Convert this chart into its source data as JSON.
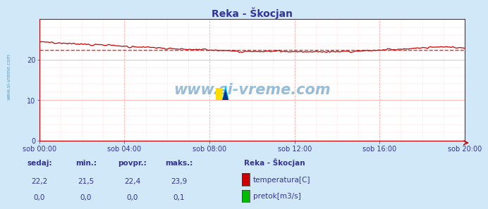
{
  "title": "Reka - Škocjan",
  "bg_color": "#d0e8f8",
  "plot_bg_color": "#ffffff",
  "grid_major_color": "#ffaaaa",
  "grid_minor_color": "#ffdddd",
  "x_labels": [
    "sob 00:00",
    "sob 04:00",
    "sob 08:00",
    "sob 12:00",
    "sob 16:00",
    "sob 20:00"
  ],
  "ylim": [
    0,
    30
  ],
  "y_ticks": [
    0,
    10,
    20
  ],
  "temp_color": "#cc0000",
  "pretok_color": "#00bb00",
  "avg_color": "#cc0000",
  "avg_value": 22.4,
  "legend_title": "Reka - Škocjan",
  "legend_items": [
    "temperatura[C]",
    "pretok[m3/s]"
  ],
  "legend_colors": [
    "#cc0000",
    "#00bb00"
  ],
  "stat_labels": [
    "sedaj:",
    "min.:",
    "povpr.:",
    "maks.:"
  ],
  "stat_temp": [
    "22,2",
    "21,5",
    "22,4",
    "23,9"
  ],
  "stat_pretok": [
    "0,0",
    "0,0",
    "0,0",
    "0,1"
  ],
  "watermark": "www.si-vreme.com",
  "watermark_color": "#4488bb",
  "title_color": "#333399",
  "axis_label_color": "#333399",
  "stat_label_color": "#333399",
  "spine_color": "#cc0000",
  "logo_colors": [
    "#ffdd00",
    "#00aaff",
    "#003399"
  ]
}
